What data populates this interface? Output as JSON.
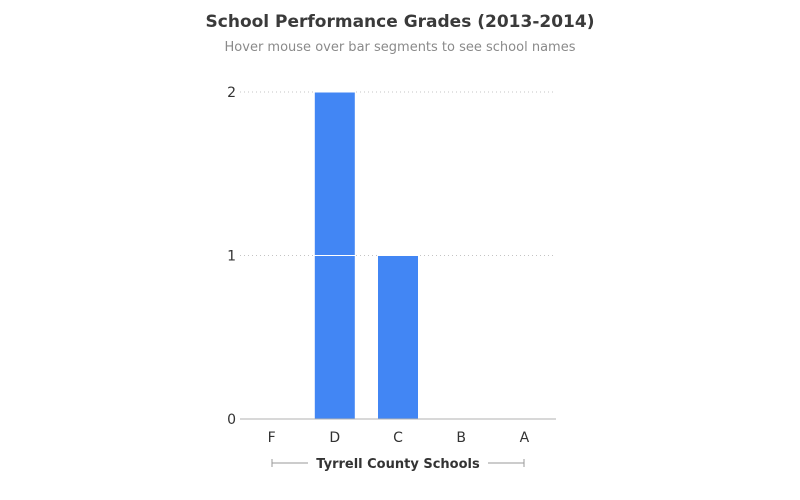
{
  "chart_data": {
    "type": "bar",
    "title": "School Performance Grades (2013-2014)",
    "subtitle": "Hover mouse over bar segments to see school names",
    "xlabel": "Tyrrell County Schools",
    "ylabel": "",
    "categories": [
      "F",
      "D",
      "C",
      "B",
      "A"
    ],
    "segments": [
      [],
      [
        1,
        1
      ],
      [
        1
      ],
      [],
      []
    ],
    "values": [
      0,
      2,
      1,
      0,
      0
    ],
    "yticks": [
      0,
      1,
      2
    ],
    "ylim": [
      0,
      2
    ],
    "grid": true,
    "legend": "none",
    "bar_color": "#4286f4"
  }
}
